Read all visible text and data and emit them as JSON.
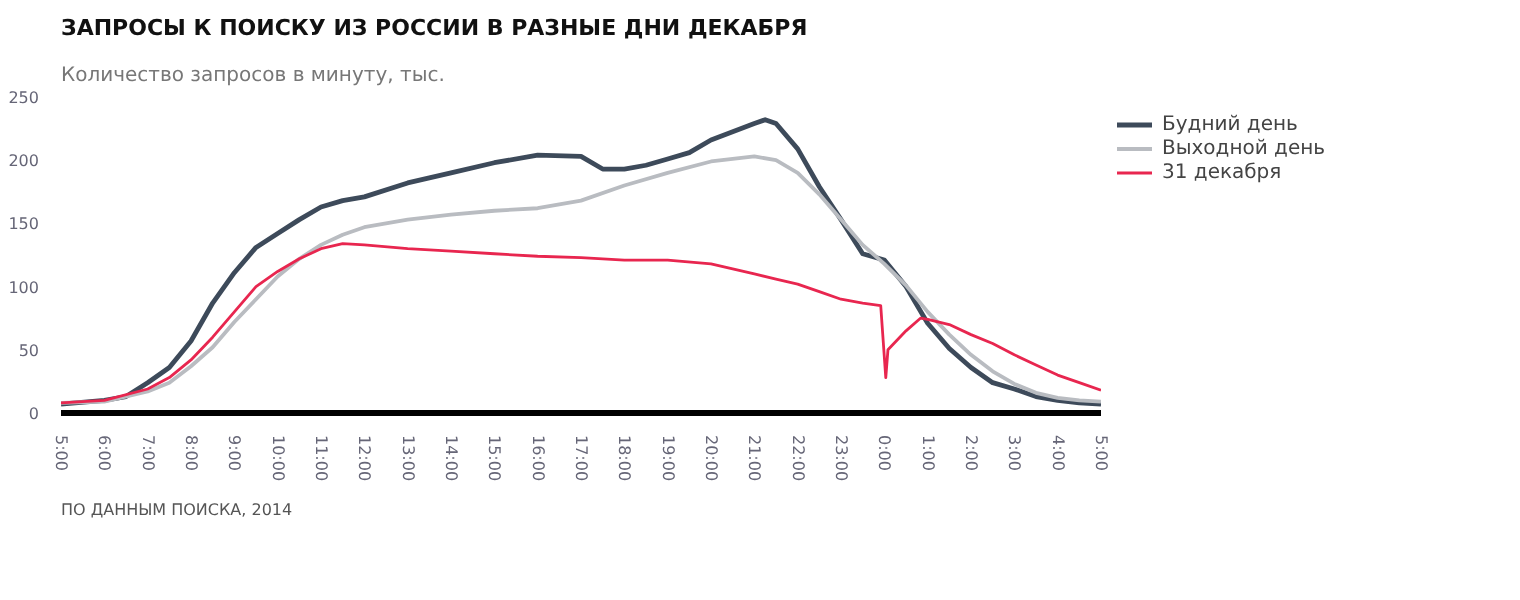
{
  "chart_data": {
    "type": "line",
    "title": "ЗАПРОСЫ К ПОИСКУ ИЗ РОССИИ В РАЗНЫЕ ДНИ ДЕКАБРЯ",
    "subtitle": "Количество запросов в минуту, тыс.",
    "annotations": [
      "ПО ДАННЫМ ПОИСКА, 2014"
    ],
    "xlim": [
      "2014-12-31T05:00",
      "2015-01-01T05:00"
    ],
    "xticks": [
      {
        "value": "2014-12-31T05:00",
        "label": "5:00"
      },
      {
        "value": "2014-12-31T06:00",
        "label": "6:00"
      },
      {
        "value": "2014-12-31T07:00",
        "label": "7:00"
      },
      {
        "value": "2014-12-31T08:00",
        "label": "8:00"
      },
      {
        "value": "2014-12-31T09:00",
        "label": "9:00"
      },
      {
        "value": "2014-12-31T10:00",
        "label": "10:00"
      },
      {
        "value": "2014-12-31T11:00",
        "label": "11:00"
      },
      {
        "value": "2014-12-31T12:00",
        "label": "12:00"
      },
      {
        "value": "2014-12-31T13:00",
        "label": "13:00"
      },
      {
        "value": "2014-12-31T14:00",
        "label": "14:00"
      },
      {
        "value": "2014-12-31T15:00",
        "label": "15:00"
      },
      {
        "value": "2014-12-31T16:00",
        "label": "16:00"
      },
      {
        "value": "2014-12-31T17:00",
        "label": "17:00"
      },
      {
        "value": "2014-12-31T18:00",
        "label": "18:00"
      },
      {
        "value": "2014-12-31T19:00",
        "label": "19:00"
      },
      {
        "value": "2014-12-31T20:00",
        "label": "20:00"
      },
      {
        "value": "2014-12-31T21:00",
        "label": "21:00"
      },
      {
        "value": "2014-12-31T22:00",
        "label": "22:00"
      },
      {
        "value": "2014-12-31T23:00",
        "label": "23:00"
      },
      {
        "value": "2015-01-01T00:00",
        "label": "0:00"
      },
      {
        "value": "2015-01-01T01:00",
        "label": "1:00"
      },
      {
        "value": "2015-01-01T02:00",
        "label": "2:00"
      },
      {
        "value": "2015-01-01T03:00",
        "label": "3:00"
      },
      {
        "value": "2015-01-01T04:00",
        "label": "4:00"
      },
      {
        "value": "2015-01-01T05:00",
        "label": "5:00"
      }
    ],
    "ylim": [
      0,
      250
    ],
    "yticks": [
      0,
      50,
      100,
      150,
      200,
      250
    ],
    "legend": "top right",
    "series": [
      {
        "name": "Будний день",
        "color": "#3d4a5a",
        "x": [
          "2014-12-31T05:00",
          "2014-12-31T06:00",
          "2014-12-31T06:30",
          "2014-12-31T07:00",
          "2014-12-31T07:30",
          "2014-12-31T08:00",
          "2014-12-31T08:30",
          "2014-12-31T09:00",
          "2014-12-31T09:30",
          "2014-12-31T10:00",
          "2014-12-31T10:30",
          "2014-12-31T11:00",
          "2014-12-31T11:30",
          "2014-12-31T12:00",
          "2014-12-31T13:00",
          "2014-12-31T14:00",
          "2014-12-31T15:00",
          "2014-12-31T16:00",
          "2014-12-31T17:00",
          "2014-12-31T17:30",
          "2014-12-31T18:00",
          "2014-12-31T18:30",
          "2014-12-31T19:00",
          "2014-12-31T19:30",
          "2014-12-31T20:00",
          "2014-12-31T21:00",
          "2014-12-31T21:15",
          "2014-12-31T21:30",
          "2014-12-31T22:00",
          "2014-12-31T22:30",
          "2014-12-31T23:00",
          "2014-12-31T23:30",
          "2015-01-01T00:00",
          "2015-01-01T00:30",
          "2015-01-01T01:00",
          "2015-01-01T01:30",
          "2015-01-01T02:00",
          "2015-01-01T02:30",
          "2015-01-01T03:00",
          "2015-01-01T03:30",
          "2015-01-01T04:00",
          "2015-01-01T04:30",
          "2015-01-01T05:00"
        ],
        "values": [
          7,
          10,
          13,
          24,
          36,
          57,
          87,
          111,
          131,
          142,
          153,
          163,
          168,
          171,
          182,
          190,
          198,
          204,
          203,
          193,
          193,
          196,
          201,
          206,
          216,
          229,
          232,
          229,
          209,
          179,
          153,
          126,
          121,
          100,
          71,
          51,
          36,
          24,
          19,
          13,
          10,
          8,
          7
        ]
      },
      {
        "name": "Выходной день",
        "color": "#b9bcc1",
        "x": [
          "2014-12-31T05:00",
          "2014-12-31T06:00",
          "2014-12-31T07:00",
          "2014-12-31T07:30",
          "2014-12-31T08:00",
          "2014-12-31T08:30",
          "2014-12-31T09:00",
          "2014-12-31T09:30",
          "2014-12-31T10:00",
          "2014-12-31T10:30",
          "2014-12-31T11:00",
          "2014-12-31T11:30",
          "2014-12-31T12:00",
          "2014-12-31T13:00",
          "2014-12-31T14:00",
          "2014-12-31T15:00",
          "2014-12-31T16:00",
          "2014-12-31T17:00",
          "2014-12-31T18:00",
          "2014-12-31T19:00",
          "2014-12-31T20:00",
          "2014-12-31T21:00",
          "2014-12-31T21:30",
          "2014-12-31T22:00",
          "2014-12-31T22:30",
          "2014-12-31T23:00",
          "2014-12-31T23:30",
          "2015-01-01T00:00",
          "2015-01-01T00:30",
          "2015-01-01T01:00",
          "2015-01-01T01:30",
          "2015-01-01T02:00",
          "2015-01-01T02:30",
          "2015-01-01T03:00",
          "2015-01-01T03:30",
          "2015-01-01T04:00",
          "2015-01-01T04:30",
          "2015-01-01T05:00"
        ],
        "values": [
          8,
          9,
          17,
          24,
          37,
          52,
          72,
          90,
          108,
          122,
          133,
          141,
          147,
          153,
          157,
          160,
          162,
          168,
          180,
          190,
          199,
          203,
          200,
          190,
          173,
          153,
          133,
          118,
          101,
          80,
          62,
          46,
          33,
          23,
          16,
          12,
          10,
          9
        ]
      },
      {
        "name": "31 декабря",
        "color": "#e8264f",
        "x": [
          "2014-12-31T05:00",
          "2014-12-31T06:00",
          "2014-12-31T07:00",
          "2014-12-31T07:30",
          "2014-12-31T08:00",
          "2014-12-31T08:30",
          "2014-12-31T09:00",
          "2014-12-31T09:30",
          "2014-12-31T10:00",
          "2014-12-31T10:30",
          "2014-12-31T11:00",
          "2014-12-31T11:30",
          "2014-12-31T12:00",
          "2014-12-31T13:00",
          "2014-12-31T14:00",
          "2014-12-31T15:00",
          "2014-12-31T16:00",
          "2014-12-31T17:00",
          "2014-12-31T18:00",
          "2014-12-31T19:00",
          "2014-12-31T20:00",
          "2014-12-31T20:30",
          "2014-12-31T21:00",
          "2014-12-31T21:30",
          "2014-12-31T22:00",
          "2014-12-31T22:30",
          "2014-12-31T23:00",
          "2014-12-31T23:30",
          "2014-12-31T23:55",
          "2015-01-01T00:02",
          "2015-01-01T00:05",
          "2015-01-01T00:30",
          "2015-01-01T00:50",
          "2015-01-01T01:00",
          "2015-01-01T01:30",
          "2015-01-01T02:00",
          "2015-01-01T02:30",
          "2015-01-01T03:00",
          "2015-01-01T03:30",
          "2015-01-01T04:00",
          "2015-01-01T04:30",
          "2015-01-01T05:00"
        ],
        "values": [
          8,
          10,
          19,
          28,
          42,
          60,
          80,
          100,
          112,
          122,
          130,
          134,
          133,
          130,
          128,
          126,
          124,
          123,
          121,
          121,
          118,
          114,
          110,
          106,
          102,
          96,
          90,
          87,
          85,
          28,
          50,
          65,
          75,
          74,
          70,
          62,
          55,
          46,
          38,
          30,
          24,
          18
        ]
      }
    ]
  }
}
